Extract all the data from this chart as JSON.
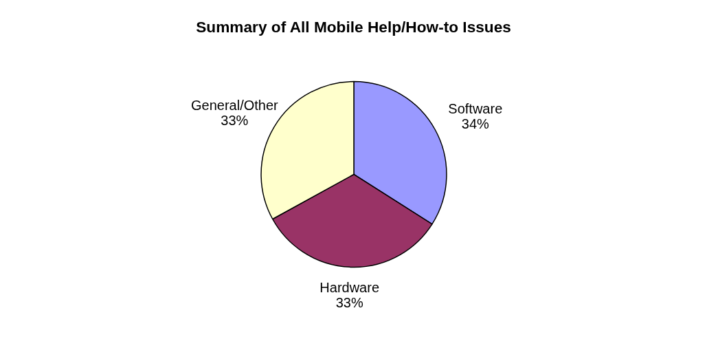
{
  "chart_data": {
    "type": "pie",
    "title": "Summary of All Mobile Help/How-to Issues",
    "categories": [
      "Software",
      "Hardware",
      "General/Other"
    ],
    "values": [
      34,
      33,
      33
    ],
    "colors": [
      "#9999ff",
      "#993366",
      "#ffffcc"
    ],
    "value_labels": [
      "34%",
      "33%",
      "33%"
    ]
  }
}
